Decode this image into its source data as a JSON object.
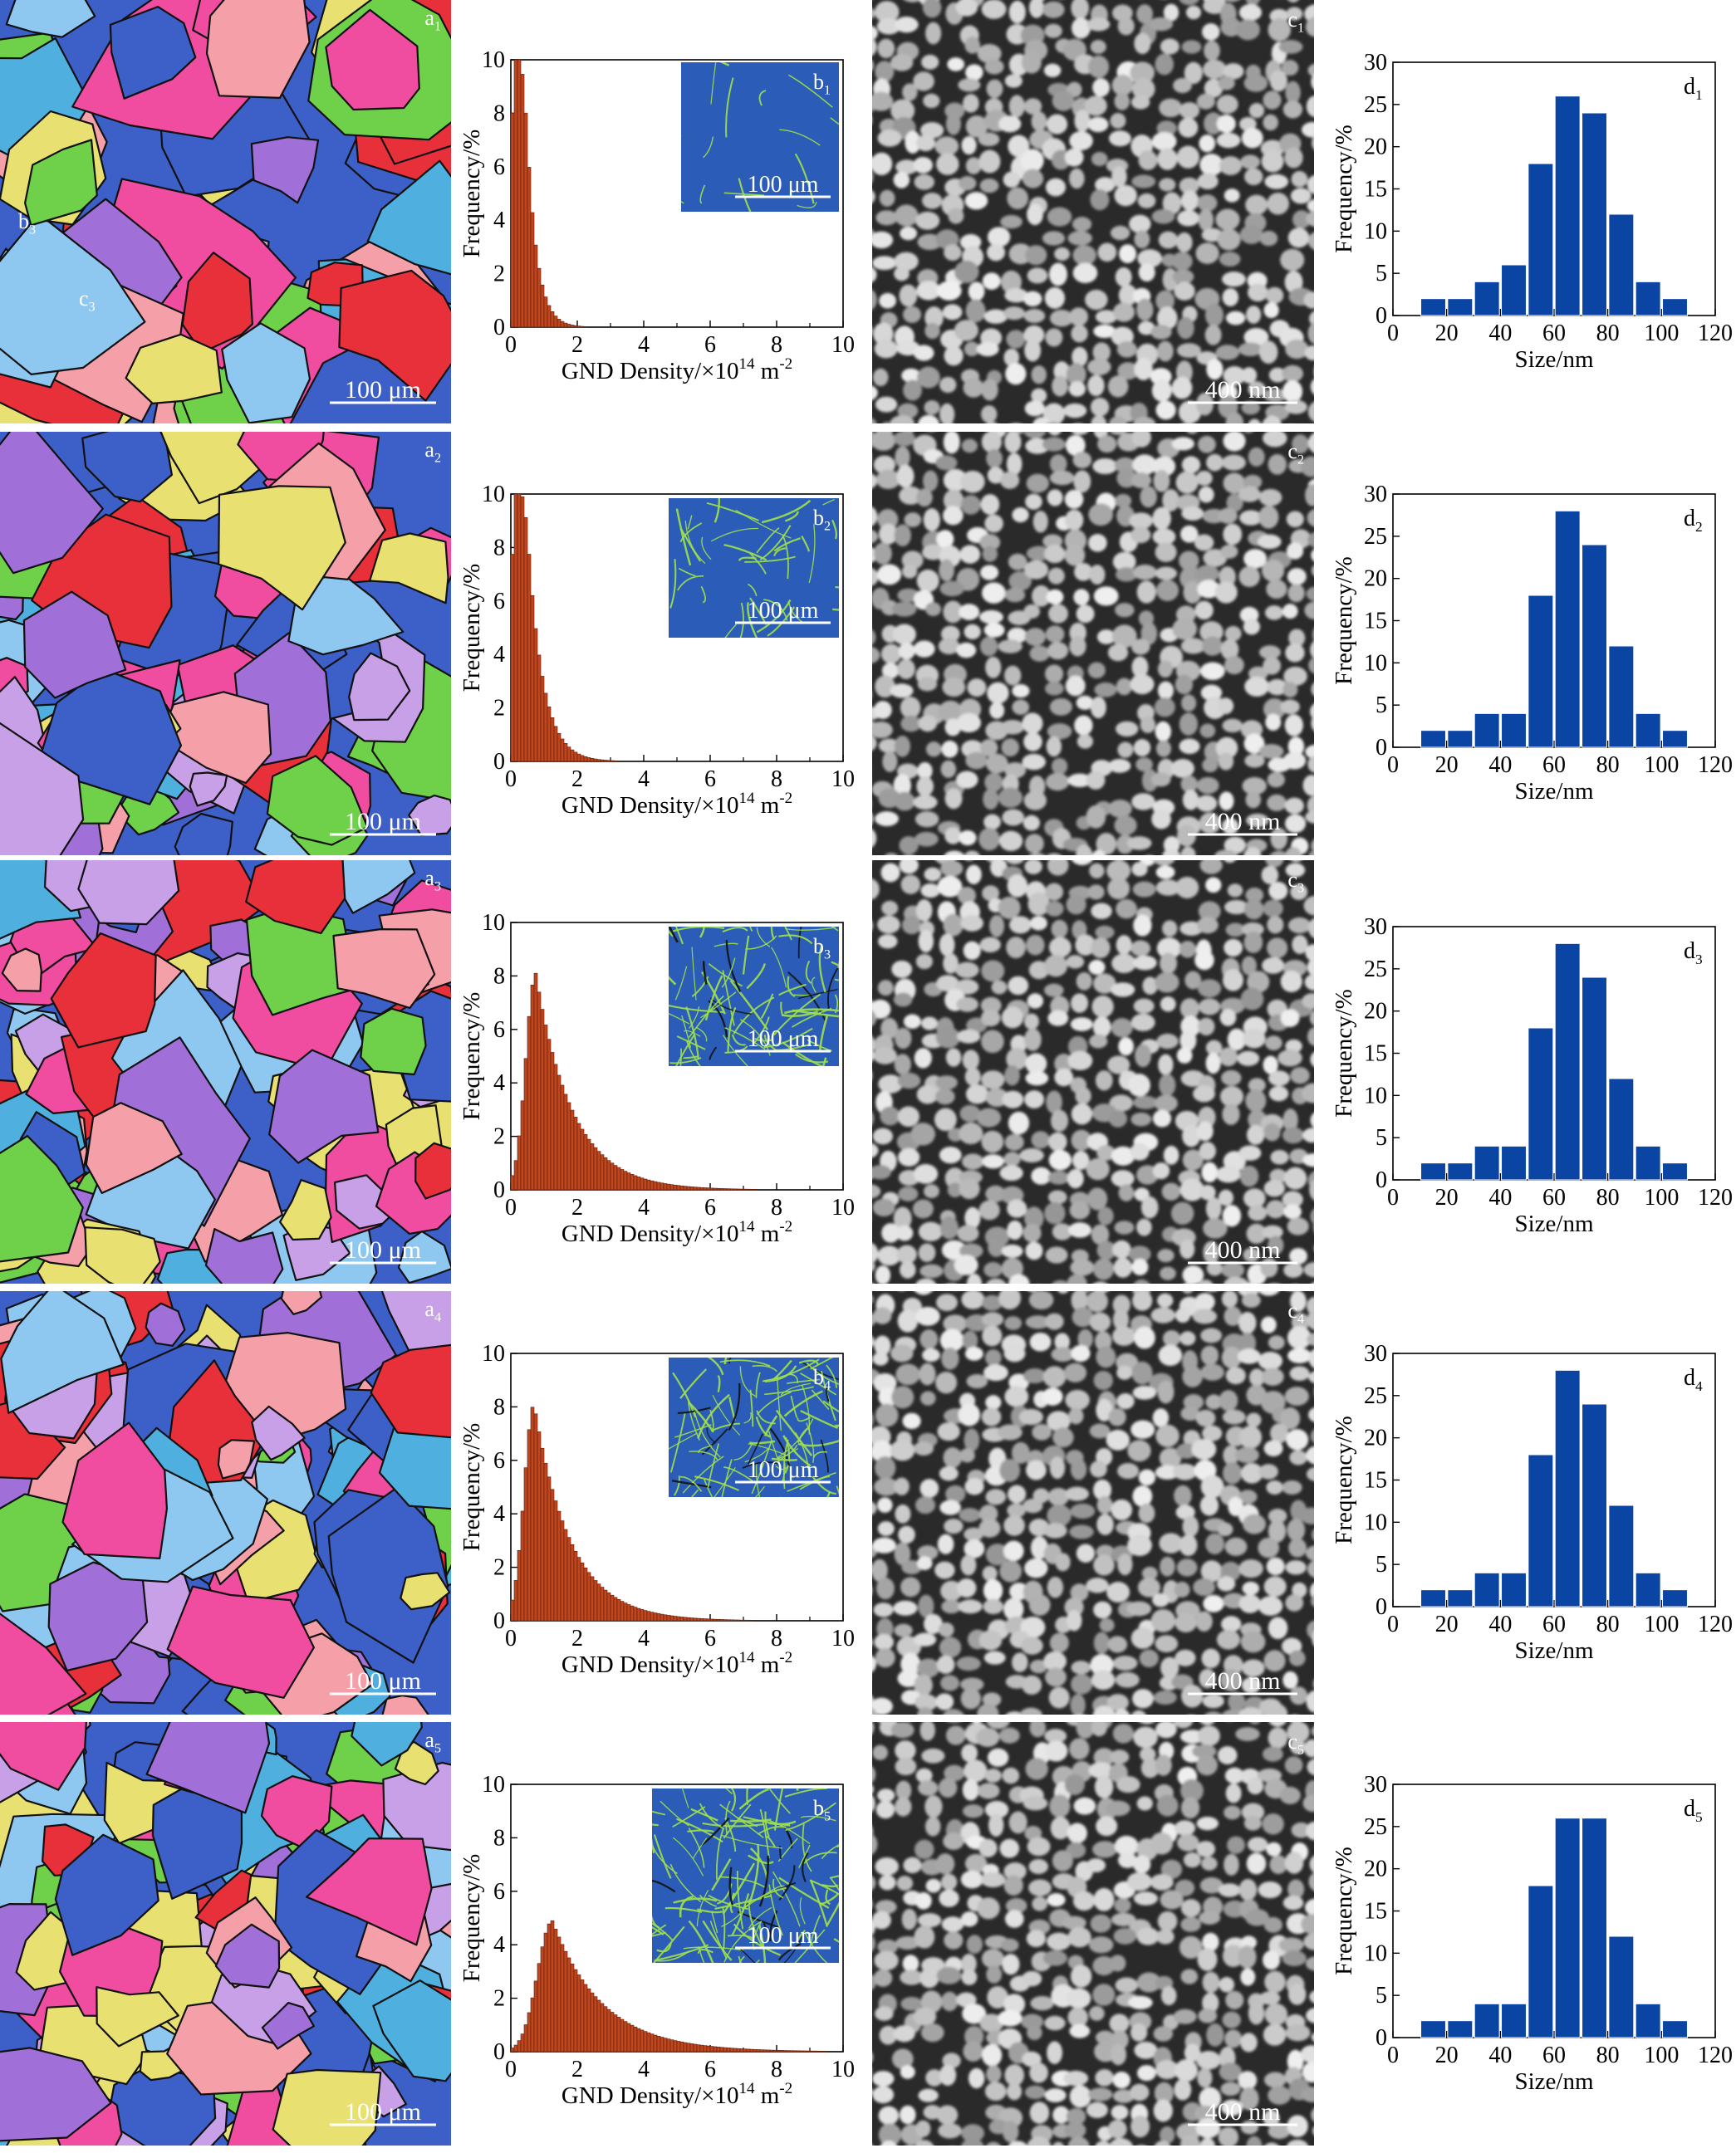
{
  "scale_bars": {
    "ebsd": "100 μm",
    "gnd_inset": "100 μm",
    "sem": "400 nm"
  },
  "colors": {
    "gnd_bar": "#c0461e",
    "gnd_inset_bg": "#2b5cb8",
    "gnd_inset_network": "#9ee04a",
    "size_bar": "#0b45a4",
    "ebsd_palette": [
      "#3c5fc8",
      "#e8303a",
      "#f04da0",
      "#6fd04a",
      "#8ec8f0",
      "#a070d8",
      "#f5a0a8",
      "#e8e070",
      "#4fb0e0",
      "#c8a0e8"
    ],
    "sem_background": "#2a2a2a",
    "sem_particle": "#c8c8c8"
  },
  "chart_data": [
    {
      "type": "bar",
      "panel": "b",
      "row": 1,
      "label_letter": "b",
      "label_sub": "1",
      "xlabel": "GND Density/×10",
      "xlabel_sup": "14",
      "xlabel_unit": " m",
      "xlabel_sup2": "-2",
      "ylabel": "Frequency/%",
      "xlim": [
        0,
        10
      ],
      "ylim": [
        0,
        10
      ],
      "xticks": [
        "0",
        "2",
        "4",
        "6",
        "8",
        "10"
      ],
      "yticks": [
        "0",
        "2",
        "4",
        "6",
        "8",
        "10"
      ],
      "inset": {
        "network": 0.04
      },
      "distribution": {
        "peak_x": 0.25,
        "peak_y": 10,
        "cap_at_ylim": true,
        "sigma": 0.3,
        "tail_start": 0.5,
        "tail_scale": 0.3
      }
    },
    {
      "type": "bar",
      "panel": "b",
      "row": 2,
      "label_letter": "b",
      "label_sub": "2",
      "xlabel": "GND Density/×10",
      "xlabel_sup": "14",
      "xlabel_unit": " m",
      "xlabel_sup2": "-2",
      "ylabel": "Frequency/%",
      "xlim": [
        0,
        10
      ],
      "ylim": [
        0,
        10
      ],
      "xticks": [
        "0",
        "2",
        "4",
        "6",
        "8",
        "10"
      ],
      "yticks": [
        "0",
        "2",
        "4",
        "6",
        "8",
        "10"
      ],
      "inset": {
        "network": 0.22
      },
      "distribution": {
        "peak_x": 0.3,
        "peak_y": 10,
        "cap_at_ylim": true,
        "sigma": 0.35,
        "tail_start": 0.55,
        "tail_scale": 0.45
      }
    },
    {
      "type": "bar",
      "panel": "b",
      "row": 3,
      "label_letter": "b",
      "label_sub": "3",
      "xlabel": "GND Density/×10",
      "xlabel_sup": "14",
      "xlabel_unit": " m",
      "xlabel_sup2": "-2",
      "ylabel": "Frequency/%",
      "xlim": [
        0,
        10
      ],
      "ylim": [
        0,
        10
      ],
      "xticks": [
        "0",
        "2",
        "4",
        "6",
        "8",
        "10"
      ],
      "yticks": [
        "0",
        "2",
        "4",
        "6",
        "8",
        "10"
      ],
      "inset": {
        "network": 0.55
      },
      "distribution": {
        "peak_x": 0.75,
        "peak_y": 8.1,
        "cap_at_ylim": false,
        "sigma": 0.3,
        "tail_start": 0.75,
        "tail_scale": 1.1
      }
    },
    {
      "type": "bar",
      "panel": "b",
      "row": 4,
      "label_letter": "b",
      "label_sub": "4",
      "xlabel": "GND Density/×10",
      "xlabel_sup": "14",
      "xlabel_unit": " m",
      "xlabel_sup2": "-2",
      "ylabel": "Frequency/%",
      "xlim": [
        0,
        10
      ],
      "ylim": [
        0,
        10
      ],
      "xticks": [
        "0",
        "2",
        "4",
        "6",
        "8",
        "10"
      ],
      "yticks": [
        "0",
        "2",
        "4",
        "6",
        "8",
        "10"
      ],
      "inset": {
        "network": 0.65
      },
      "distribution": {
        "peak_x": 0.7,
        "peak_y": 8.1,
        "cap_at_ylim": false,
        "sigma": 0.3,
        "tail_start": 0.7,
        "tail_scale": 1.1
      }
    },
    {
      "type": "bar",
      "panel": "b",
      "row": 5,
      "label_letter": "b",
      "label_sub": "5",
      "xlabel": "GND Density/×10",
      "xlabel_sup": "14",
      "xlabel_unit": " m",
      "xlabel_sup2": "-2",
      "ylabel": "Frequency/%",
      "xlim": [
        0,
        10
      ],
      "ylim": [
        0,
        10
      ],
      "xticks": [
        "0",
        "2",
        "4",
        "6",
        "8",
        "10"
      ],
      "yticks": [
        "0",
        "2",
        "4",
        "6",
        "8",
        "10"
      ],
      "inset": {
        "network": 0.85
      },
      "distribution": {
        "peak_x": 1.25,
        "peak_y": 4.9,
        "cap_at_ylim": false,
        "sigma": 0.45,
        "tail_start": 1.25,
        "tail_scale": 1.5
      }
    },
    {
      "type": "bar",
      "panel": "d",
      "row": 1,
      "label_letter": "d",
      "label_sub": "1",
      "xlabel": "Size/nm",
      "ylabel": "Frequency/%",
      "xlim": [
        0,
        120
      ],
      "ylim": [
        0,
        30
      ],
      "xticks": [
        "0",
        "20",
        "40",
        "60",
        "80",
        "100",
        "120"
      ],
      "yticks": [
        "0",
        "5",
        "10",
        "15",
        "20",
        "25",
        "30"
      ],
      "x": [
        15,
        25,
        35,
        45,
        55,
        65,
        75,
        85,
        95,
        105
      ],
      "values": [
        2,
        2,
        4,
        6,
        18,
        26,
        24,
        12,
        4,
        2
      ]
    },
    {
      "type": "bar",
      "panel": "d",
      "row": 2,
      "label_letter": "d",
      "label_sub": "2",
      "xlabel": "Size/nm",
      "ylabel": "Frequency/%",
      "xlim": [
        0,
        120
      ],
      "ylim": [
        0,
        30
      ],
      "xticks": [
        "0",
        "20",
        "40",
        "60",
        "80",
        "100",
        "120"
      ],
      "yticks": [
        "0",
        "5",
        "10",
        "15",
        "20",
        "25",
        "30"
      ],
      "x": [
        15,
        25,
        35,
        45,
        55,
        65,
        75,
        85,
        95,
        105
      ],
      "values": [
        2,
        2,
        4,
        4,
        18,
        28,
        24,
        12,
        4,
        2
      ]
    },
    {
      "type": "bar",
      "panel": "d",
      "row": 3,
      "label_letter": "d",
      "label_sub": "3",
      "xlabel": "Size/nm",
      "ylabel": "Frequency/%",
      "xlim": [
        0,
        120
      ],
      "ylim": [
        0,
        30
      ],
      "xticks": [
        "0",
        "20",
        "40",
        "60",
        "80",
        "100",
        "120"
      ],
      "yticks": [
        "0",
        "5",
        "10",
        "15",
        "20",
        "25",
        "30"
      ],
      "x": [
        15,
        25,
        35,
        45,
        55,
        65,
        75,
        85,
        95,
        105
      ],
      "values": [
        2,
        2,
        4,
        4,
        18,
        28,
        24,
        12,
        4,
        2
      ]
    },
    {
      "type": "bar",
      "panel": "d",
      "row": 4,
      "label_letter": "d",
      "label_sub": "4",
      "xlabel": "Size/nm",
      "ylabel": "Frequency/%",
      "xlim": [
        0,
        120
      ],
      "ylim": [
        0,
        30
      ],
      "xticks": [
        "0",
        "20",
        "40",
        "60",
        "80",
        "100",
        "120"
      ],
      "yticks": [
        "0",
        "5",
        "10",
        "15",
        "20",
        "25",
        "30"
      ],
      "x": [
        15,
        25,
        35,
        45,
        55,
        65,
        75,
        85,
        95,
        105
      ],
      "values": [
        2,
        2,
        4,
        4,
        18,
        28,
        24,
        12,
        4,
        2
      ]
    },
    {
      "type": "bar",
      "panel": "d",
      "row": 5,
      "label_letter": "d",
      "label_sub": "5",
      "xlabel": "Size/nm",
      "ylabel": "Frequency/%",
      "xlim": [
        0,
        120
      ],
      "ylim": [
        0,
        30
      ],
      "xticks": [
        "0",
        "20",
        "40",
        "60",
        "80",
        "100",
        "120"
      ],
      "yticks": [
        "0",
        "5",
        "10",
        "15",
        "20",
        "25",
        "30"
      ],
      "x": [
        15,
        25,
        35,
        45,
        55,
        65,
        75,
        85,
        95,
        105
      ],
      "values": [
        2,
        2,
        4,
        4,
        18,
        26,
        26,
        12,
        4,
        2
      ]
    }
  ],
  "ebsd_panels": [
    {
      "row": 1,
      "label_letter": "a",
      "label_sub": "1",
      "markers": [
        {
          "letter": "b",
          "sub": "3"
        },
        {
          "letter": "c",
          "sub": "3"
        }
      ]
    },
    {
      "row": 2,
      "label_letter": "a",
      "label_sub": "2",
      "markers": []
    },
    {
      "row": 3,
      "label_letter": "a",
      "label_sub": "3",
      "markers": []
    },
    {
      "row": 4,
      "label_letter": "a",
      "label_sub": "4",
      "markers": []
    },
    {
      "row": 5,
      "label_letter": "a",
      "label_sub": "5",
      "markers": []
    }
  ],
  "sem_panels": [
    {
      "row": 1,
      "label_letter": "c",
      "label_sub": "1"
    },
    {
      "row": 2,
      "label_letter": "c",
      "label_sub": "2"
    },
    {
      "row": 3,
      "label_letter": "c",
      "label_sub": "3"
    },
    {
      "row": 4,
      "label_letter": "c",
      "label_sub": "4"
    },
    {
      "row": 5,
      "label_letter": "c",
      "label_sub": "5"
    }
  ]
}
